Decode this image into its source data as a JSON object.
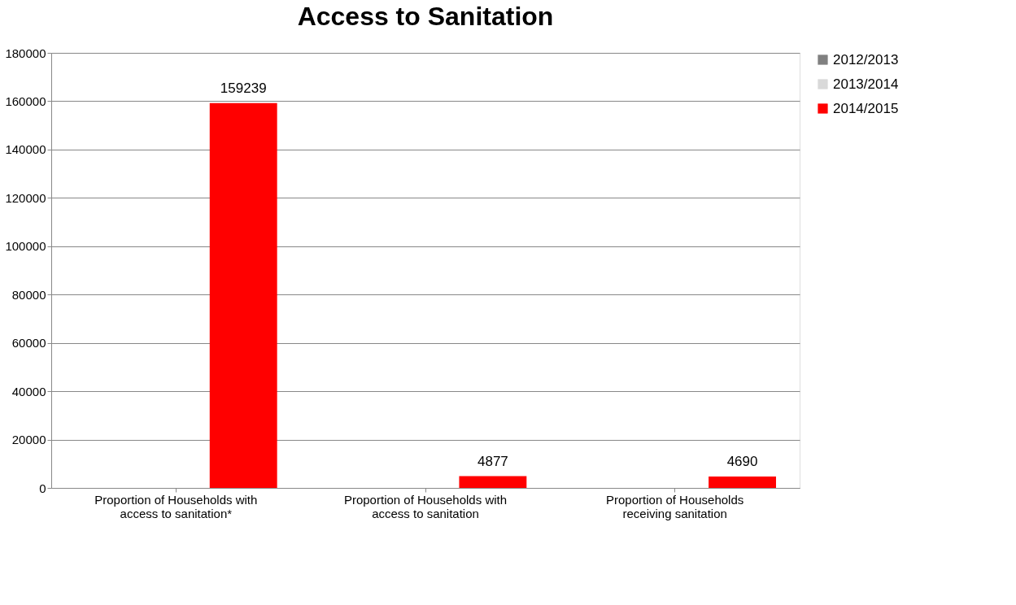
{
  "chart_data": {
    "type": "bar",
    "title": "Access to Sanitation",
    "categories": [
      "Proportion of Households with access to sanitation*",
      "Proportion of Households with access to sanitation",
      "Proportion of Households receiving sanitation"
    ],
    "series": [
      {
        "name": "2012/2013",
        "color": "#808080",
        "values": [
          null,
          null,
          null
        ]
      },
      {
        "name": "2013/2014",
        "color": "#d9d9d9",
        "values": [
          null,
          null,
          null
        ]
      },
      {
        "name": "2014/2015",
        "color": "#ff0000",
        "values": [
          159239,
          4877,
          4690
        ]
      }
    ],
    "ylim": [
      0,
      180000
    ],
    "yticks": [
      0,
      20000,
      40000,
      60000,
      80000,
      100000,
      120000,
      140000,
      160000,
      180000
    ],
    "grid": "y",
    "legend": "right",
    "data_labels": true
  }
}
